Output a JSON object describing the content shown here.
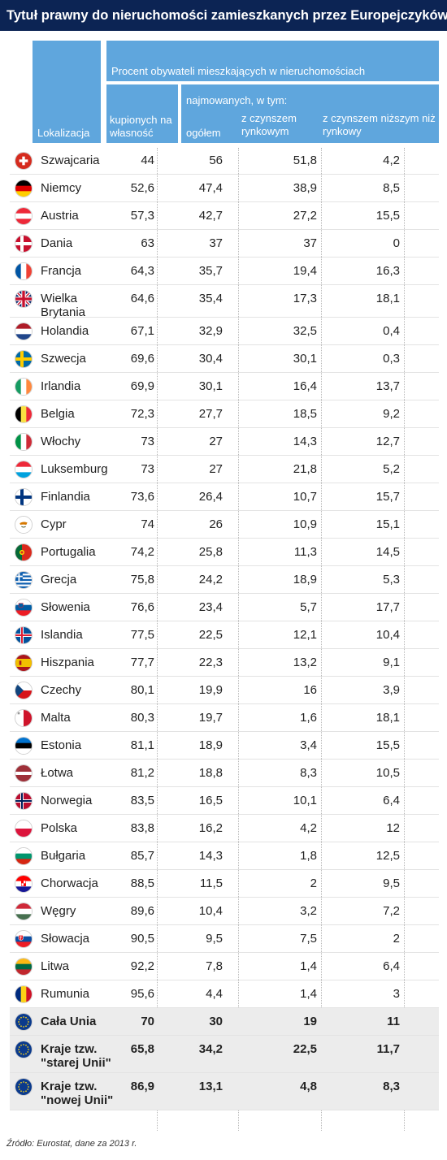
{
  "title": "Tytuł prawny do nieruchomości zamieszkanych przez Europejczyków",
  "headers": {
    "location": "Lokalizacja",
    "percent_group": "Procent obywateli mieszkających w nieruchomościach",
    "purchased": "kupionych na własność",
    "rented_group": "najmowanych, w tym:",
    "rented_total": "ogółem",
    "market_rent": "z czynszem rynkowym",
    "below_market_rent": "z czynszem niższym niż rynkowy"
  },
  "chart_data": {
    "type": "table",
    "columns": [
      "Lokalizacja",
      "kupionych na własność",
      "ogółem",
      "z czynszem rynkowym",
      "z czynszem niższym niż rynkowy"
    ],
    "rows": [
      {
        "name": "Szwajcaria",
        "flag": "flag-switzerland",
        "values": [
          "44",
          "56",
          "51,8",
          "4,2"
        ]
      },
      {
        "name": "Niemcy",
        "flag": "flag-germany",
        "values": [
          "52,6",
          "47,4",
          "38,9",
          "8,5"
        ]
      },
      {
        "name": "Austria",
        "flag": "flag-austria",
        "values": [
          "57,3",
          "42,7",
          "27,2",
          "15,5"
        ]
      },
      {
        "name": "Dania",
        "flag": "flag-denmark",
        "values": [
          "63",
          "37",
          "37",
          "0"
        ]
      },
      {
        "name": "Francja",
        "flag": "flag-france",
        "values": [
          "64,3",
          "35,7",
          "19,4",
          "16,3"
        ]
      },
      {
        "name": "Wielka Brytania",
        "flag": "flag-uk",
        "values": [
          "64,6",
          "35,4",
          "17,3",
          "18,1"
        ]
      },
      {
        "name": "Holandia",
        "flag": "flag-netherlands",
        "values": [
          "67,1",
          "32,9",
          "32,5",
          "0,4"
        ]
      },
      {
        "name": "Szwecja",
        "flag": "flag-sweden",
        "values": [
          "69,6",
          "30,4",
          "30,1",
          "0,3"
        ]
      },
      {
        "name": "Irlandia",
        "flag": "flag-ireland",
        "values": [
          "69,9",
          "30,1",
          "16,4",
          "13,7"
        ]
      },
      {
        "name": "Belgia",
        "flag": "flag-belgium",
        "values": [
          "72,3",
          "27,7",
          "18,5",
          "9,2"
        ]
      },
      {
        "name": "Włochy",
        "flag": "flag-italy",
        "values": [
          "73",
          "27",
          "14,3",
          "12,7"
        ]
      },
      {
        "name": "Luksemburg",
        "flag": "flag-luxembourg",
        "values": [
          "73",
          "27",
          "21,8",
          "5,2"
        ]
      },
      {
        "name": "Finlandia",
        "flag": "flag-finland",
        "values": [
          "73,6",
          "26,4",
          "10,7",
          "15,7"
        ]
      },
      {
        "name": "Cypr",
        "flag": "flag-cyprus",
        "values": [
          "74",
          "26",
          "10,9",
          "15,1"
        ]
      },
      {
        "name": "Portugalia",
        "flag": "flag-portugal",
        "values": [
          "74,2",
          "25,8",
          "11,3",
          "14,5"
        ]
      },
      {
        "name": "Grecja",
        "flag": "flag-greece",
        "values": [
          "75,8",
          "24,2",
          "18,9",
          "5,3"
        ]
      },
      {
        "name": "Słowenia",
        "flag": "flag-slovenia",
        "values": [
          "76,6",
          "23,4",
          "5,7",
          "17,7"
        ]
      },
      {
        "name": "Islandia",
        "flag": "flag-iceland",
        "values": [
          "77,5",
          "22,5",
          "12,1",
          "10,4"
        ]
      },
      {
        "name": "Hiszpania",
        "flag": "flag-spain",
        "values": [
          "77,7",
          "22,3",
          "13,2",
          "9,1"
        ]
      },
      {
        "name": "Czechy",
        "flag": "flag-czechia",
        "values": [
          "80,1",
          "19,9",
          "16",
          "3,9"
        ]
      },
      {
        "name": "Malta",
        "flag": "flag-malta",
        "values": [
          "80,3",
          "19,7",
          "1,6",
          "18,1"
        ]
      },
      {
        "name": "Estonia",
        "flag": "flag-estonia",
        "values": [
          "81,1",
          "18,9",
          "3,4",
          "15,5"
        ]
      },
      {
        "name": "Łotwa",
        "flag": "flag-latvia",
        "values": [
          "81,2",
          "18,8",
          "8,3",
          "10,5"
        ]
      },
      {
        "name": "Norwegia",
        "flag": "flag-norway",
        "values": [
          "83,5",
          "16,5",
          "10,1",
          "6,4"
        ]
      },
      {
        "name": "Polska",
        "flag": "flag-poland",
        "values": [
          "83,8",
          "16,2",
          "4,2",
          "12"
        ]
      },
      {
        "name": "Bułgaria",
        "flag": "flag-bulgaria",
        "values": [
          "85,7",
          "14,3",
          "1,8",
          "12,5"
        ]
      },
      {
        "name": "Chorwacja",
        "flag": "flag-croatia",
        "values": [
          "88,5",
          "11,5",
          "2",
          "9,5"
        ]
      },
      {
        "name": "Węgry",
        "flag": "flag-hungary",
        "values": [
          "89,6",
          "10,4",
          "3,2",
          "7,2"
        ]
      },
      {
        "name": "Słowacja",
        "flag": "flag-slovakia",
        "values": [
          "90,5",
          "9,5",
          "7,5",
          "2"
        ]
      },
      {
        "name": "Litwa",
        "flag": "flag-lithuania",
        "values": [
          "92,2",
          "7,8",
          "1,4",
          "6,4"
        ]
      },
      {
        "name": "Rumunia",
        "flag": "flag-romania",
        "values": [
          "95,6",
          "4,4",
          "1,4",
          "3"
        ]
      },
      {
        "name": "Cała Unia",
        "flag": "flag-eu",
        "values": [
          "70",
          "30",
          "19",
          "11"
        ]
      },
      {
        "name": "Kraje tzw. \"starej Unii\"",
        "flag": "flag-eu",
        "values": [
          "65,8",
          "34,2",
          "22,5",
          "11,7"
        ]
      },
      {
        "name": "Kraje tzw. \"nowej Unii\"",
        "flag": "flag-eu",
        "values": [
          "86,9",
          "13,1",
          "4,8",
          "8,3"
        ]
      }
    ]
  },
  "source": "Źródło: Eurostat, dane za 2013 r."
}
